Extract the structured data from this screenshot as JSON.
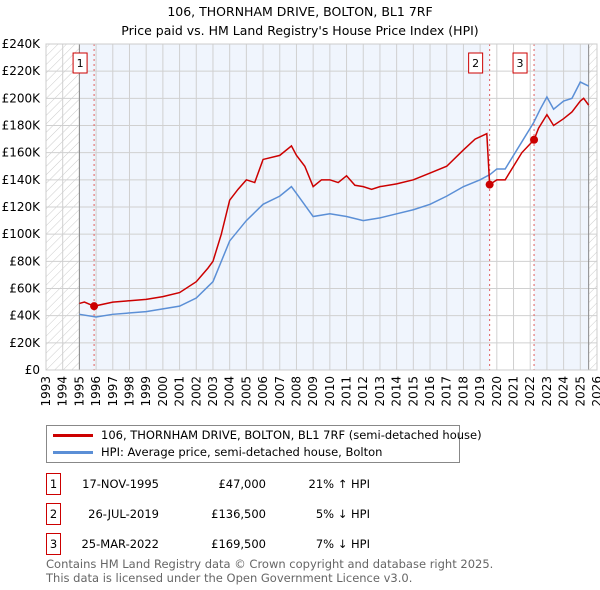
{
  "chart_data": {
    "type": "line",
    "title": "106, THORNHAM DRIVE, BOLTON, BL1 7RF",
    "subtitle": "Price paid vs. HM Land Registry's House Price Index (HPI)",
    "xlim": [
      1993,
      2026
    ],
    "ylim": [
      0,
      240000
    ],
    "yticks": [
      0,
      20000,
      40000,
      60000,
      80000,
      100000,
      120000,
      140000,
      160000,
      180000,
      200000,
      220000,
      240000
    ],
    "ytick_labels": [
      "£0",
      "£20K",
      "£40K",
      "£60K",
      "£80K",
      "£100K",
      "£120K",
      "£140K",
      "£160K",
      "£180K",
      "£200K",
      "£220K",
      "£240K"
    ],
    "xticks": [
      "1993",
      "1994",
      "1995",
      "1996",
      "1997",
      "1998",
      "1999",
      "2000",
      "2001",
      "2002",
      "2003",
      "2004",
      "2005",
      "2006",
      "2007",
      "2008",
      "2009",
      "2010",
      "2011",
      "2012",
      "2013",
      "2014",
      "2015",
      "2016",
      "2017",
      "2018",
      "2019",
      "2020",
      "2021",
      "2022",
      "2023",
      "2024",
      "2025",
      "2026"
    ],
    "grid": true,
    "series": [
      {
        "name": "106, THORNHAM DRIVE, BOLTON, BL1 7RF (semi-detached house)",
        "color": "#cc0000",
        "points": [
          [
            1995,
            49000
          ],
          [
            1995.3,
            50000
          ],
          [
            1995.88,
            47000
          ],
          [
            1997,
            50000
          ],
          [
            1998,
            51000
          ],
          [
            1999,
            52000
          ],
          [
            2000,
            54000
          ],
          [
            2001,
            57000
          ],
          [
            2002,
            65000
          ],
          [
            2002.7,
            75000
          ],
          [
            2003,
            80000
          ],
          [
            2003.5,
            100000
          ],
          [
            2004,
            125000
          ],
          [
            2004.5,
            133000
          ],
          [
            2005,
            140000
          ],
          [
            2005.5,
            138000
          ],
          [
            2006,
            155000
          ],
          [
            2007,
            158000
          ],
          [
            2007.7,
            165000
          ],
          [
            2008,
            158000
          ],
          [
            2008.5,
            150000
          ],
          [
            2009,
            135000
          ],
          [
            2009.5,
            140000
          ],
          [
            2010,
            140000
          ],
          [
            2010.5,
            138000
          ],
          [
            2011,
            143000
          ],
          [
            2011.5,
            136000
          ],
          [
            2012,
            135000
          ],
          [
            2012.5,
            133000
          ],
          [
            2013,
            135000
          ],
          [
            2014,
            137000
          ],
          [
            2015,
            140000
          ],
          [
            2016,
            145000
          ],
          [
            2017,
            150000
          ],
          [
            2018,
            162000
          ],
          [
            2018.7,
            170000
          ],
          [
            2019.4,
            174000
          ],
          [
            2019.57,
            136500
          ],
          [
            2020,
            140000
          ],
          [
            2020.5,
            140000
          ],
          [
            2021,
            150000
          ],
          [
            2021.5,
            160000
          ],
          [
            2022.23,
            169500
          ],
          [
            2022.5,
            178000
          ],
          [
            2023,
            188000
          ],
          [
            2023.4,
            180000
          ],
          [
            2024,
            185000
          ],
          [
            2024.5,
            190000
          ],
          [
            2025,
            198000
          ],
          [
            2025.2,
            200000
          ],
          [
            2025.5,
            195000
          ]
        ]
      },
      {
        "name": "HPI: Average price, semi-detached house, Bolton",
        "color": "#5b8fd6",
        "points": [
          [
            1995,
            41000
          ],
          [
            1996,
            39000
          ],
          [
            1997,
            41000
          ],
          [
            1999,
            43000
          ],
          [
            2001,
            47000
          ],
          [
            2002,
            53000
          ],
          [
            2003,
            65000
          ],
          [
            2004,
            95000
          ],
          [
            2005,
            110000
          ],
          [
            2006,
            122000
          ],
          [
            2007,
            128000
          ],
          [
            2007.7,
            135000
          ],
          [
            2008,
            130000
          ],
          [
            2009,
            113000
          ],
          [
            2010,
            115000
          ],
          [
            2011,
            113000
          ],
          [
            2012,
            110000
          ],
          [
            2013,
            112000
          ],
          [
            2014,
            115000
          ],
          [
            2015,
            118000
          ],
          [
            2016,
            122000
          ],
          [
            2017,
            128000
          ],
          [
            2018,
            135000
          ],
          [
            2019,
            140000
          ],
          [
            2019.6,
            144000
          ],
          [
            2020,
            148000
          ],
          [
            2020.5,
            148000
          ],
          [
            2021,
            158000
          ],
          [
            2021.5,
            168000
          ],
          [
            2022.2,
            182000
          ],
          [
            2022.6,
            192000
          ],
          [
            2023,
            201000
          ],
          [
            2023.4,
            192000
          ],
          [
            2024,
            198000
          ],
          [
            2024.5,
            200000
          ],
          [
            2025,
            212000
          ],
          [
            2025.5,
            209000
          ]
        ]
      }
    ],
    "sales": [
      {
        "label": "1",
        "x": 1995.88,
        "price": 47000
      },
      {
        "label": "2",
        "x": 2019.57,
        "price": 136500
      },
      {
        "label": "3",
        "x": 2022.23,
        "price": 169500
      }
    ],
    "data_range": [
      1995,
      2025.5
    ]
  },
  "legend": {
    "red": "106, THORNHAM DRIVE, BOLTON, BL1 7RF (semi-detached house)",
    "blue": "HPI: Average price, semi-detached house, Bolton"
  },
  "table": [
    {
      "n": "1",
      "date": "17-NOV-1995",
      "price": "£47,000",
      "hpi": "21% ↑ HPI"
    },
    {
      "n": "2",
      "date": "26-JUL-2019",
      "price": "£136,500",
      "hpi": "5% ↓ HPI"
    },
    {
      "n": "3",
      "date": "25-MAR-2022",
      "price": "£169,500",
      "hpi": "7% ↓ HPI"
    }
  ],
  "footer": {
    "line1": "Contains HM Land Registry data © Crown copyright and database right 2025.",
    "line2": "This data is licensed under the Open Government Licence v3.0."
  }
}
